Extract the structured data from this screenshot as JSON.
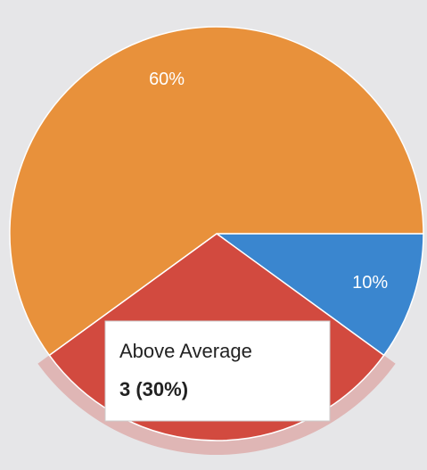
{
  "chart_data": {
    "type": "pie",
    "categories": [
      null,
      "Above Average",
      null
    ],
    "values": [
      10,
      30,
      60
    ],
    "value_labels": [
      "10%",
      "3 (30%)",
      "60%"
    ],
    "colors": [
      "#3a86cf",
      "#d24a3f",
      "#e8913b"
    ],
    "highlight": 1
  }
}
